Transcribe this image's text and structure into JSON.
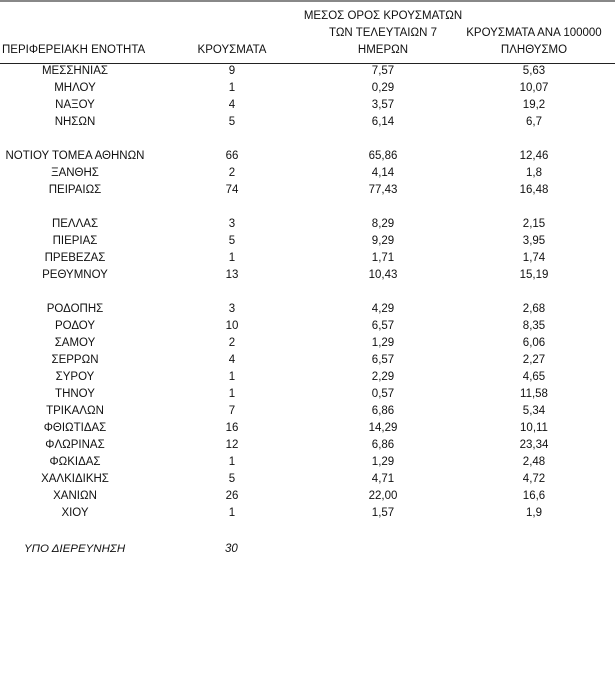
{
  "headers": {
    "region": "ΠΕΡΙΦΕΡΕΙΑΚΗ ΕΝΟΤΗΤΑ",
    "cases": "ΚΡΟΥΣΜΑΤΑ",
    "avg_line1": "ΜΕΣΟΣ ΟΡΟΣ ΚΡΟΥΣΜΑΤΩΝ",
    "avg_line2": "ΤΩΝ ΤΕΛΕΥΤΑΙΩΝ 7",
    "avg_line3": "ΗΜΕΡΩΝ",
    "per100k_line1": "ΚΡΟΥΣΜΑΤΑ ΑΝΑ 100000",
    "per100k_line2": "ΠΛΗΘΥΣΜΟ"
  },
  "rows": [
    [
      "ΜΕΣΣΗΝΙΑΣ",
      "9",
      "7,57",
      "5,63"
    ],
    [
      "ΜΗΛΟΥ",
      "1",
      "0,29",
      "10,07"
    ],
    [
      "ΝΑΞΟΥ",
      "4",
      "3,57",
      "19,2"
    ],
    [
      "ΝΗΣΩΝ",
      "5",
      "6,14",
      "6,7"
    ],
    null,
    [
      "ΝΟΤΙΟΥ ΤΟΜΕΑ ΑΘΗΝΩΝ",
      "66",
      "65,86",
      "12,46"
    ],
    [
      "ΞΑΝΘΗΣ",
      "2",
      "4,14",
      "1,8"
    ],
    [
      "ΠΕΙΡΑΙΩΣ",
      "74",
      "77,43",
      "16,48"
    ],
    null,
    [
      "ΠΕΛΛΑΣ",
      "3",
      "8,29",
      "2,15"
    ],
    [
      "ΠΙΕΡΙΑΣ",
      "5",
      "9,29",
      "3,95"
    ],
    [
      "ΠΡΕΒΕΖΑΣ",
      "1",
      "1,71",
      "1,74"
    ],
    [
      "ΡΕΘΥΜΝΟΥ",
      "13",
      "10,43",
      "15,19"
    ],
    null,
    [
      "ΡΟΔΟΠΗΣ",
      "3",
      "4,29",
      "2,68"
    ],
    [
      "ΡΟΔΟΥ",
      "10",
      "6,57",
      "8,35"
    ],
    [
      "ΣΑΜΟΥ",
      "2",
      "1,29",
      "6,06"
    ],
    [
      "ΣΕΡΡΩΝ",
      "4",
      "6,57",
      "2,27"
    ],
    [
      "ΣΥΡΟΥ",
      "1",
      "2,29",
      "4,65"
    ],
    [
      "ΤΗΝΟΥ",
      "1",
      "0,57",
      "11,58"
    ],
    [
      "ΤΡΙΚΑΛΩΝ",
      "7",
      "6,86",
      "5,34"
    ],
    [
      "ΦΘΙΩΤΙΔΑΣ",
      "16",
      "14,29",
      "10,11"
    ],
    [
      "ΦΛΩΡΙΝΑΣ",
      "12",
      "6,86",
      "23,34"
    ],
    [
      "ΦΩΚΙΔΑΣ",
      "1",
      "1,29",
      "2,48"
    ],
    [
      "ΧΑΛΚΙΔΙΚΗΣ",
      "5",
      "4,71",
      "4,72"
    ],
    [
      "ΧΑΝΙΩΝ",
      "26",
      "22,00",
      "16,6"
    ],
    [
      "ΧΙΟΥ",
      "1",
      "1,57",
      "1,9"
    ]
  ],
  "footer": {
    "label": "ΥΠΟ ΔΙΕΡΕΥΝΗΣΗ",
    "value": "30"
  }
}
